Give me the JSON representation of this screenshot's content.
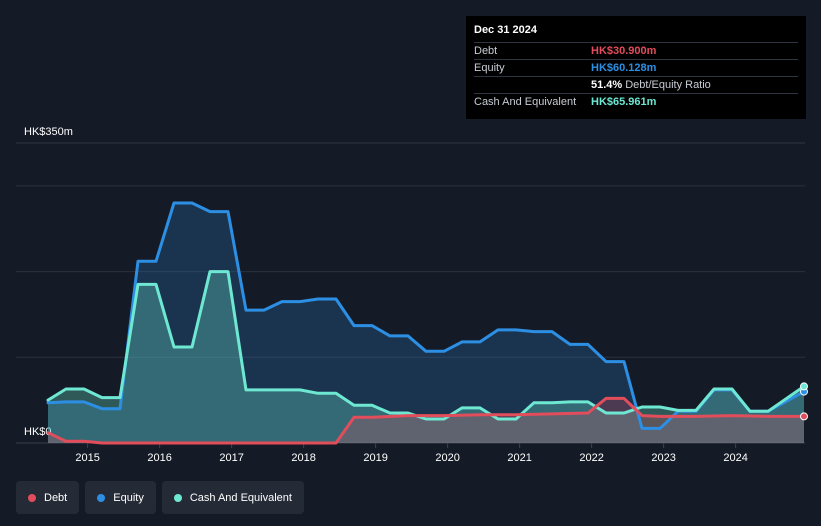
{
  "tooltip": {
    "date": "Dec 31 2024",
    "rows": [
      {
        "label": "Debt",
        "value": "HK$30.900m",
        "color": "#e24d5b"
      },
      {
        "label": "Equity",
        "value": "HK$60.128m",
        "color": "#2d8fe3"
      },
      {
        "label": "",
        "value": "51.4%",
        "extra": "Debt/Equity Ratio",
        "color": "#ffffff"
      },
      {
        "label": "Cash And Equivalent",
        "value": "HK$65.961m",
        "color": "#6ee8d2"
      }
    ]
  },
  "legend": [
    {
      "label": "Debt",
      "color": "#e24d5b"
    },
    {
      "label": "Equity",
      "color": "#2d8fe3"
    },
    {
      "label": "Cash And Equivalent",
      "color": "#6ee8d2"
    }
  ],
  "chart_data": {
    "type": "area",
    "y_top_label": "HK$350m",
    "y_bottom_label": "HK$0",
    "ylim": [
      0,
      350
    ],
    "xlim": [
      2014.5,
      2025.0
    ],
    "x_ticks": [
      "2015",
      "2016",
      "2017",
      "2018",
      "2019",
      "2020",
      "2021",
      "2022",
      "2023",
      "2024"
    ],
    "grid": true,
    "series": [
      {
        "name": "Debt",
        "color": "#e24d5b",
        "points": [
          [
            2014.5,
            12
          ],
          [
            2014.75,
            2
          ],
          [
            2015.0,
            2
          ],
          [
            2015.25,
            0
          ],
          [
            2016.0,
            0
          ],
          [
            2017.0,
            0
          ],
          [
            2018.0,
            0
          ],
          [
            2018.5,
            0
          ],
          [
            2018.75,
            30
          ],
          [
            2019.0,
            30
          ],
          [
            2019.5,
            32
          ],
          [
            2020.0,
            32
          ],
          [
            2020.5,
            33
          ],
          [
            2021.0,
            33
          ],
          [
            2021.5,
            34
          ],
          [
            2022.0,
            35
          ],
          [
            2022.25,
            52
          ],
          [
            2022.5,
            52
          ],
          [
            2022.75,
            32
          ],
          [
            2023.0,
            31
          ],
          [
            2023.5,
            31
          ],
          [
            2024.0,
            32
          ],
          [
            2024.5,
            31
          ],
          [
            2025.0,
            31
          ]
        ]
      },
      {
        "name": "Equity",
        "color": "#2d8fe3",
        "points": [
          [
            2014.5,
            47
          ],
          [
            2014.75,
            48
          ],
          [
            2015.0,
            48
          ],
          [
            2015.25,
            40
          ],
          [
            2015.5,
            40
          ],
          [
            2015.75,
            212
          ],
          [
            2016.0,
            212
          ],
          [
            2016.25,
            280
          ],
          [
            2016.5,
            280
          ],
          [
            2016.75,
            270
          ],
          [
            2017.0,
            270
          ],
          [
            2017.25,
            155
          ],
          [
            2017.5,
            155
          ],
          [
            2017.75,
            165
          ],
          [
            2018.0,
            165
          ],
          [
            2018.25,
            168
          ],
          [
            2018.5,
            168
          ],
          [
            2018.75,
            137
          ],
          [
            2019.0,
            137
          ],
          [
            2019.25,
            125
          ],
          [
            2019.5,
            125
          ],
          [
            2019.75,
            107
          ],
          [
            2020.0,
            107
          ],
          [
            2020.25,
            118
          ],
          [
            2020.5,
            118
          ],
          [
            2020.75,
            132
          ],
          [
            2021.0,
            132
          ],
          [
            2021.25,
            130
          ],
          [
            2021.5,
            130
          ],
          [
            2021.75,
            115
          ],
          [
            2022.0,
            115
          ],
          [
            2022.25,
            95
          ],
          [
            2022.5,
            95
          ],
          [
            2022.75,
            17
          ],
          [
            2023.0,
            17
          ],
          [
            2023.25,
            37
          ],
          [
            2023.5,
            37
          ],
          [
            2023.75,
            62
          ],
          [
            2024.0,
            62
          ],
          [
            2024.25,
            37
          ],
          [
            2024.5,
            37
          ],
          [
            2025.0,
            60
          ]
        ]
      },
      {
        "name": "Cash And Equivalent",
        "color": "#6ee8d2",
        "points": [
          [
            2014.5,
            50
          ],
          [
            2014.75,
            63
          ],
          [
            2015.0,
            63
          ],
          [
            2015.25,
            53
          ],
          [
            2015.5,
            53
          ],
          [
            2015.75,
            185
          ],
          [
            2016.0,
            185
          ],
          [
            2016.25,
            112
          ],
          [
            2016.5,
            112
          ],
          [
            2016.75,
            200
          ],
          [
            2017.0,
            200
          ],
          [
            2017.25,
            62
          ],
          [
            2017.5,
            62
          ],
          [
            2017.75,
            62
          ],
          [
            2018.0,
            62
          ],
          [
            2018.25,
            58
          ],
          [
            2018.5,
            58
          ],
          [
            2018.75,
            44
          ],
          [
            2019.0,
            44
          ],
          [
            2019.25,
            35
          ],
          [
            2019.5,
            35
          ],
          [
            2019.75,
            28
          ],
          [
            2020.0,
            28
          ],
          [
            2020.25,
            41
          ],
          [
            2020.5,
            41
          ],
          [
            2020.75,
            28
          ],
          [
            2021.0,
            28
          ],
          [
            2021.25,
            47
          ],
          [
            2021.5,
            47
          ],
          [
            2021.75,
            48
          ],
          [
            2022.0,
            48
          ],
          [
            2022.25,
            35
          ],
          [
            2022.5,
            35
          ],
          [
            2022.75,
            42
          ],
          [
            2023.0,
            42
          ],
          [
            2023.25,
            38
          ],
          [
            2023.5,
            38
          ],
          [
            2023.75,
            63
          ],
          [
            2024.0,
            63
          ],
          [
            2024.25,
            37
          ],
          [
            2024.5,
            37
          ],
          [
            2025.0,
            66
          ]
        ]
      }
    ]
  }
}
